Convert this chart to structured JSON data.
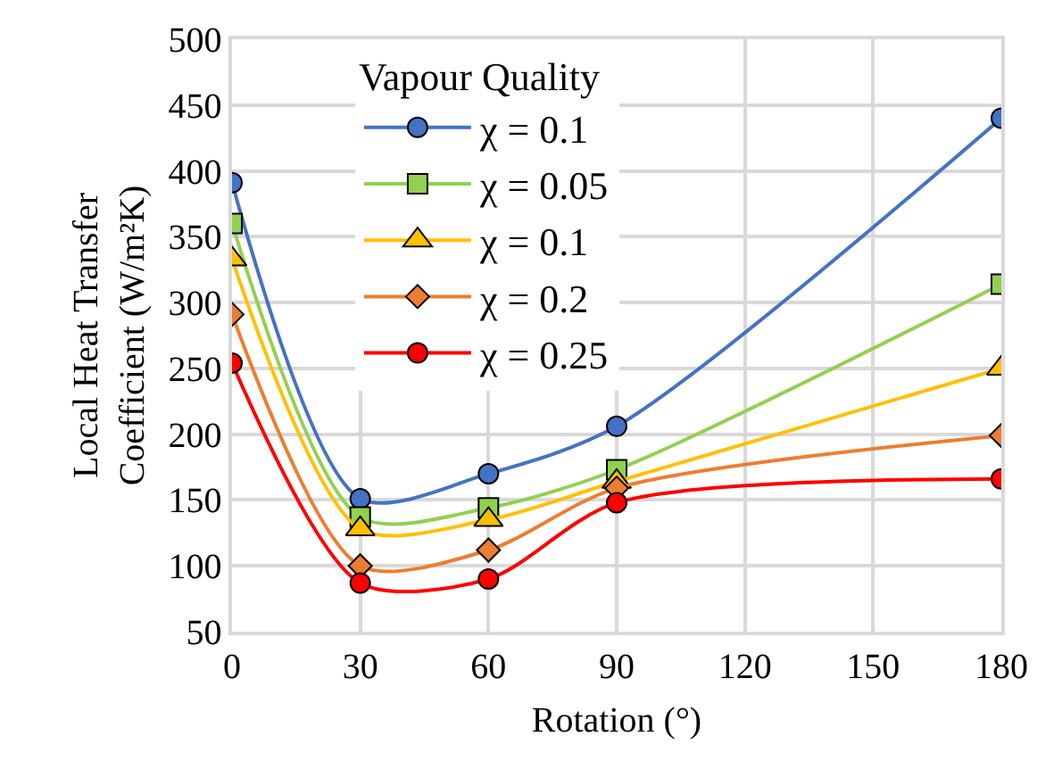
{
  "chart_data": {
    "type": "line",
    "xlabel": "Rotation (°)",
    "ylabel": "Local Heat Transfer\nCoefficient (W/m²K)",
    "legend_title": "Vapour Quality",
    "legend": "top left",
    "grid": true,
    "x": [
      0,
      30,
      60,
      90,
      180
    ],
    "xlim": [
      0,
      180
    ],
    "xticks": [
      0,
      30,
      60,
      90,
      120,
      150,
      180
    ],
    "ylim": [
      50,
      500
    ],
    "yticks": [
      50,
      100,
      150,
      200,
      250,
      300,
      350,
      400,
      450,
      500
    ],
    "series": [
      {
        "name": "χ = 0.1",
        "color": "#4472c4",
        "marker": "circle",
        "values": [
          391,
          151,
          170,
          206,
          440
        ]
      },
      {
        "name": "χ = 0.05",
        "color": "#92d050",
        "marker": "square",
        "values": [
          360,
          137,
          144,
          173,
          314
        ]
      },
      {
        "name": "χ = 0.1",
        "color": "#ffc000",
        "marker": "triangle",
        "values": [
          333,
          128,
          135,
          164,
          250
        ]
      },
      {
        "name": "χ = 0.2",
        "color": "#ed7d31",
        "marker": "diamond",
        "values": [
          291,
          100,
          112,
          159,
          199
        ]
      },
      {
        "name": "χ = 0.25",
        "color": "#ff0000",
        "marker": "circle",
        "values": [
          254,
          87,
          90,
          148,
          166
        ]
      }
    ]
  }
}
